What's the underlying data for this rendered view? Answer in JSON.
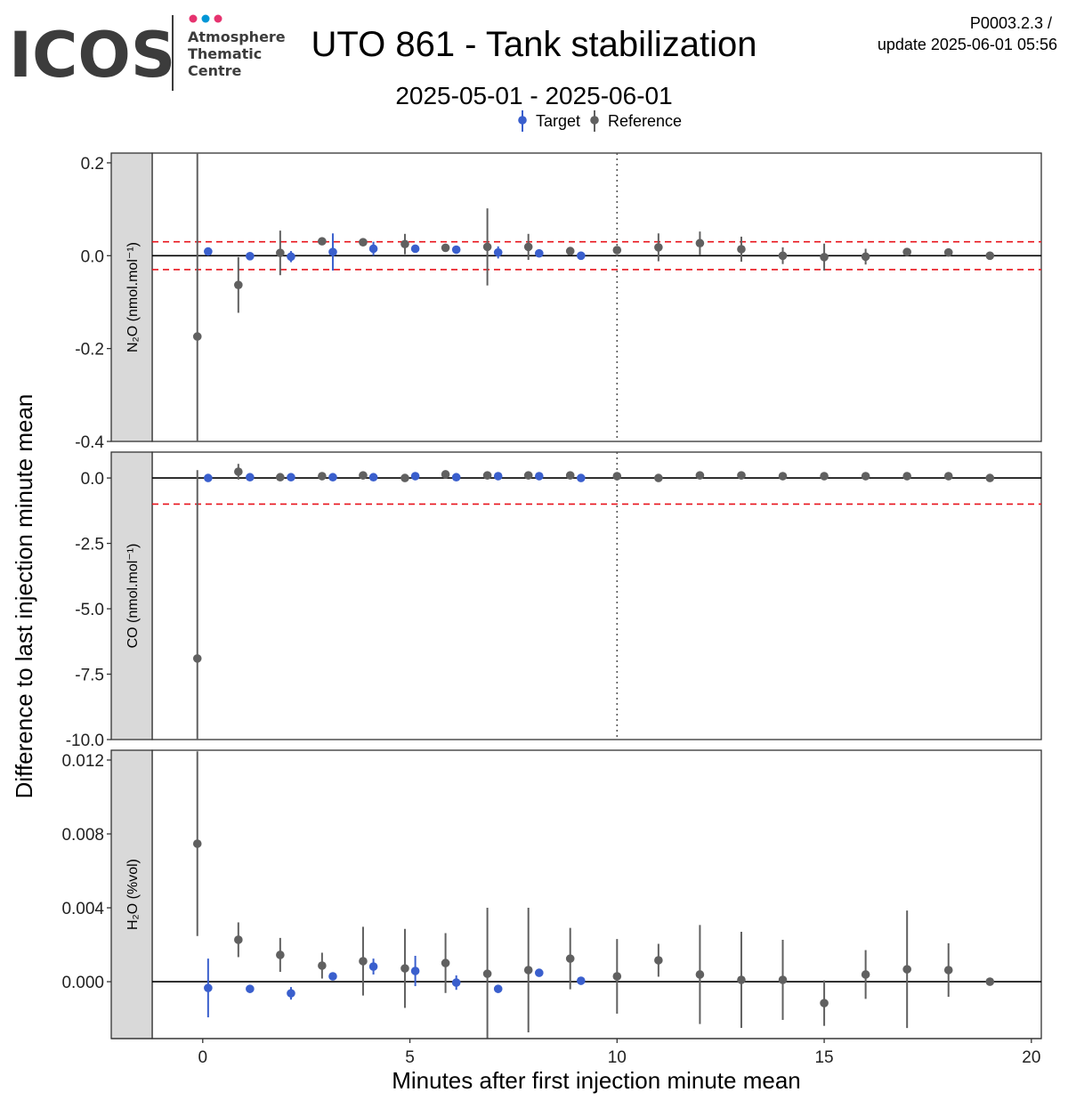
{
  "header": {
    "logo": "ICOS",
    "logo_lines": [
      "Atmosphere",
      "Thematic",
      "Centre"
    ],
    "title": "UTO 861 - Tank stabilization",
    "subtitle": "2025-05-01 - 2025-06-01",
    "version": "P0003.2.3 /",
    "update": "update  2025-06-01 05:56"
  },
  "y_axis_label": "Difference to last injection minute mean",
  "x_axis": {
    "label": "Minutes after first injection minute mean",
    "lim": [
      -1.22,
      20.24
    ],
    "ticks": [
      0,
      5,
      10,
      15,
      20
    ]
  },
  "chart_data": [
    {
      "type": "scatter",
      "panel_label": "N₂O (nmol.mol⁻¹)",
      "ylim": [
        -0.4,
        0.221
      ],
      "yticks": [
        0.2,
        {
          "value": 0,
          "label": "0.0"
        },
        -0.2,
        -0.4
      ],
      "baseline": 0,
      "thresholds": [
        0.03,
        -0.03
      ],
      "vline": 10,
      "series": [
        {
          "name": "Target",
          "color": "#3a5fcd",
          "x": [
            0.13,
            1.14,
            2.13,
            3.14,
            4.12,
            5.13,
            6.12,
            7.13,
            8.12,
            9.13
          ],
          "values": [
            0.009,
            -0.001,
            -0.002,
            0.008,
            0.015,
            0.015,
            0.013,
            0.007,
            0.005,
            0.0
          ],
          "errors": [
            0.003,
            0.003,
            0.012,
            0.04,
            0.015,
            0.006,
            0.003,
            0.013,
            0.003,
            0.002
          ]
        },
        {
          "name": "Reference",
          "color": "#606060",
          "x": [
            -0.13,
            0.86,
            1.87,
            2.88,
            3.87,
            4.88,
            5.86,
            6.87,
            7.86,
            8.87,
            10.0,
            11.0,
            12.0,
            13.0,
            14.0,
            15.0,
            16.0,
            17.0,
            18.0,
            19.0
          ],
          "values": [
            -0.174,
            -0.063,
            0.006,
            0.031,
            0.029,
            0.025,
            0.017,
            0.019,
            0.019,
            0.01,
            0.012,
            0.018,
            0.027,
            0.014,
            0.0,
            -0.003,
            -0.002,
            0.008,
            0.007,
            0.0
          ],
          "errors": [
            0.4,
            0.06,
            0.048,
            0.004,
            0.003,
            0.022,
            0.008,
            0.083,
            0.028,
            0.004,
            0.004,
            0.03,
            0.025,
            0.027,
            0.018,
            0.029,
            0.017,
            0.003,
            0.008,
            0.002
          ]
        }
      ]
    },
    {
      "type": "scatter",
      "panel_label": "CO (nmol.mol⁻¹)",
      "ylim": [
        -10,
        0.99
      ],
      "yticks": [
        {
          "value": 0,
          "label": "0.0"
        },
        -2.5,
        {
          "value": -5,
          "label": "-5.0"
        },
        -7.5,
        {
          "value": -10,
          "label": "-10.0"
        }
      ],
      "baseline": 0,
      "thresholds": [
        -1.0
      ],
      "vline": 10,
      "series": [
        {
          "name": "Target",
          "color": "#3a5fcd",
          "x": [
            0.13,
            1.14,
            2.13,
            3.14,
            4.12,
            5.13,
            6.12,
            7.13,
            8.12,
            9.13
          ],
          "values": [
            0.0,
            0.03,
            0.03,
            0.03,
            0.03,
            0.07,
            0.03,
            0.07,
            0.07,
            0.0
          ],
          "errors": [
            0.05,
            0.05,
            0.05,
            0.05,
            0.05,
            0.05,
            0.05,
            0.05,
            0.05,
            0.05
          ]
        },
        {
          "name": "Reference",
          "color": "#606060",
          "x": [
            -0.13,
            0.86,
            1.87,
            2.88,
            3.87,
            4.88,
            5.86,
            6.87,
            7.86,
            8.87,
            10.0,
            11.0,
            12.0,
            13.0,
            14.0,
            15.0,
            16.0,
            17.0,
            18.0,
            19.0
          ],
          "values": [
            -6.9,
            0.24,
            0.03,
            0.07,
            0.1,
            0.0,
            0.14,
            0.1,
            0.1,
            0.1,
            0.07,
            0.0,
            0.1,
            0.1,
            0.07,
            0.07,
            0.07,
            0.07,
            0.07,
            0.0
          ],
          "errors": [
            7.2,
            0.3,
            0.05,
            0.05,
            0.05,
            0.05,
            0.15,
            0.05,
            0.05,
            0.05,
            0.05,
            0.05,
            0.05,
            0.05,
            0.05,
            0.05,
            0.05,
            0.05,
            0.05,
            0.05
          ]
        }
      ]
    },
    {
      "type": "scatter",
      "panel_label": "H₂O (%vol)",
      "ylim": [
        -0.00308,
        0.01253
      ],
      "yticks": [
        0.012,
        0.008,
        0.004,
        {
          "value": 0,
          "label": "0.000"
        }
      ],
      "baseline": 0,
      "series": [
        {
          "name": "Target",
          "color": "#3a5fcd",
          "x": [
            0.13,
            1.14,
            2.13,
            3.14,
            4.12,
            5.13,
            6.12,
            7.13,
            8.12,
            9.13
          ],
          "values": [
            -0.00034,
            -0.00039,
            -0.00063,
            0.00029,
            0.00082,
            0.00058,
            -5e-05,
            -0.00039,
            0.00048,
            5e-05
          ],
          "errors": [
            0.00159,
            2e-05,
            0.00034,
            3e-05,
            0.00043,
            0.00082,
            0.00039,
            2e-05,
            3e-05,
            3e-05
          ]
        },
        {
          "name": "Reference",
          "color": "#606060",
          "x": [
            -0.13,
            0.86,
            1.87,
            2.88,
            3.87,
            4.88,
            5.86,
            6.87,
            7.86,
            8.87,
            10.0,
            11.0,
            12.0,
            13.0,
            14.0,
            15.0,
            16.0,
            17.0,
            18.0,
            19.0
          ],
          "values": [
            0.00747,
            0.00227,
            0.00145,
            0.00087,
            0.00111,
            0.00072,
            0.00101,
            0.00043,
            0.00063,
            0.00125,
            0.00029,
            0.00116,
            0.00039,
            0.0001,
            0.0001,
            -0.00116,
            0.00039,
            0.00067,
            0.00063,
            0.0
          ],
          "errors": [
            0.005,
            0.00094,
            0.00092,
            0.0007,
            0.00186,
            0.00214,
            0.00162,
            0.00357,
            0.00337,
            0.00166,
            0.00202,
            0.00089,
            0.00268,
            0.0026,
            0.00217,
            0.00123,
            0.00132,
            0.00318,
            0.00145,
            3e-05
          ]
        }
      ]
    }
  ]
}
